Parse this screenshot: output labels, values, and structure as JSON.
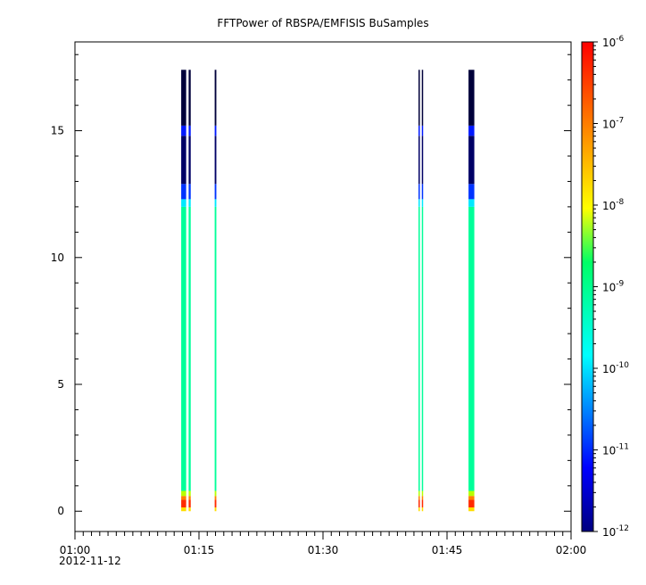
{
  "chart_data": {
    "type": "heatmap",
    "title": "FFTPower of RBSPA/EMFISIS  BuSamples",
    "xlabel": "",
    "ylabel": "",
    "x_axis": {
      "range": [
        "01:00",
        "02:00"
      ],
      "major_ticks": [
        "01:00",
        "01:15",
        "01:30",
        "01:45",
        "02:00"
      ],
      "date_label": "2012-11-12",
      "minor_tick_minutes": 1
    },
    "y_axis": {
      "range": [
        -0.8,
        18.5
      ],
      "ticks": [
        0,
        5,
        10,
        15
      ]
    },
    "colorbar": {
      "scale": "log",
      "range": [
        1e-12,
        1e-06
      ],
      "colormap": [
        "#00007f",
        "#0000ff",
        "#00ffff",
        "#00ff66",
        "#ffff00",
        "#ff7f00",
        "#ff0000"
      ],
      "tick_labels": [
        {
          "base": "10",
          "exp": "-12"
        },
        {
          "base": "10",
          "exp": "-11"
        },
        {
          "base": "10",
          "exp": "-10"
        },
        {
          "base": "10",
          "exp": "-9"
        },
        {
          "base": "10",
          "exp": "-8"
        },
        {
          "base": "10",
          "exp": "-7"
        },
        {
          "base": "10",
          "exp": "-6"
        }
      ]
    },
    "grid": false,
    "bursts": [
      {
        "start_min": 12.85,
        "end_min": 13.45,
        "y_max": 17.4
      },
      {
        "start_min": 13.75,
        "end_min": 14.0,
        "y_max": 17.4
      },
      {
        "start_min": 16.9,
        "end_min": 17.1,
        "y_max": 17.4
      },
      {
        "start_min": 41.55,
        "end_min": 41.7,
        "y_max": 17.4
      },
      {
        "start_min": 41.95,
        "end_min": 42.1,
        "y_max": 17.4
      },
      {
        "start_min": 47.6,
        "end_min": 48.3,
        "y_max": 17.4
      }
    ],
    "spectral_profile": [
      {
        "y_from": 0.0,
        "y_to": 0.15,
        "color": "#ffdd00"
      },
      {
        "y_from": 0.15,
        "y_to": 0.45,
        "color": "#ff2a00"
      },
      {
        "y_from": 0.45,
        "y_to": 0.6,
        "color": "#ff8000"
      },
      {
        "y_from": 0.6,
        "y_to": 0.8,
        "color": "#b7ff00"
      },
      {
        "y_from": 0.8,
        "y_to": 12.0,
        "color": "#00ff99"
      },
      {
        "y_from": 12.0,
        "y_to": 12.3,
        "color": "#00e8ff"
      },
      {
        "y_from": 12.3,
        "y_to": 12.9,
        "color": "#0033ff"
      },
      {
        "y_from": 12.9,
        "y_to": 14.8,
        "color": "#000066"
      },
      {
        "y_from": 14.8,
        "y_to": 15.2,
        "color": "#0018ff"
      },
      {
        "y_from": 15.2,
        "y_to": 17.4,
        "color": "#00003a"
      }
    ]
  }
}
